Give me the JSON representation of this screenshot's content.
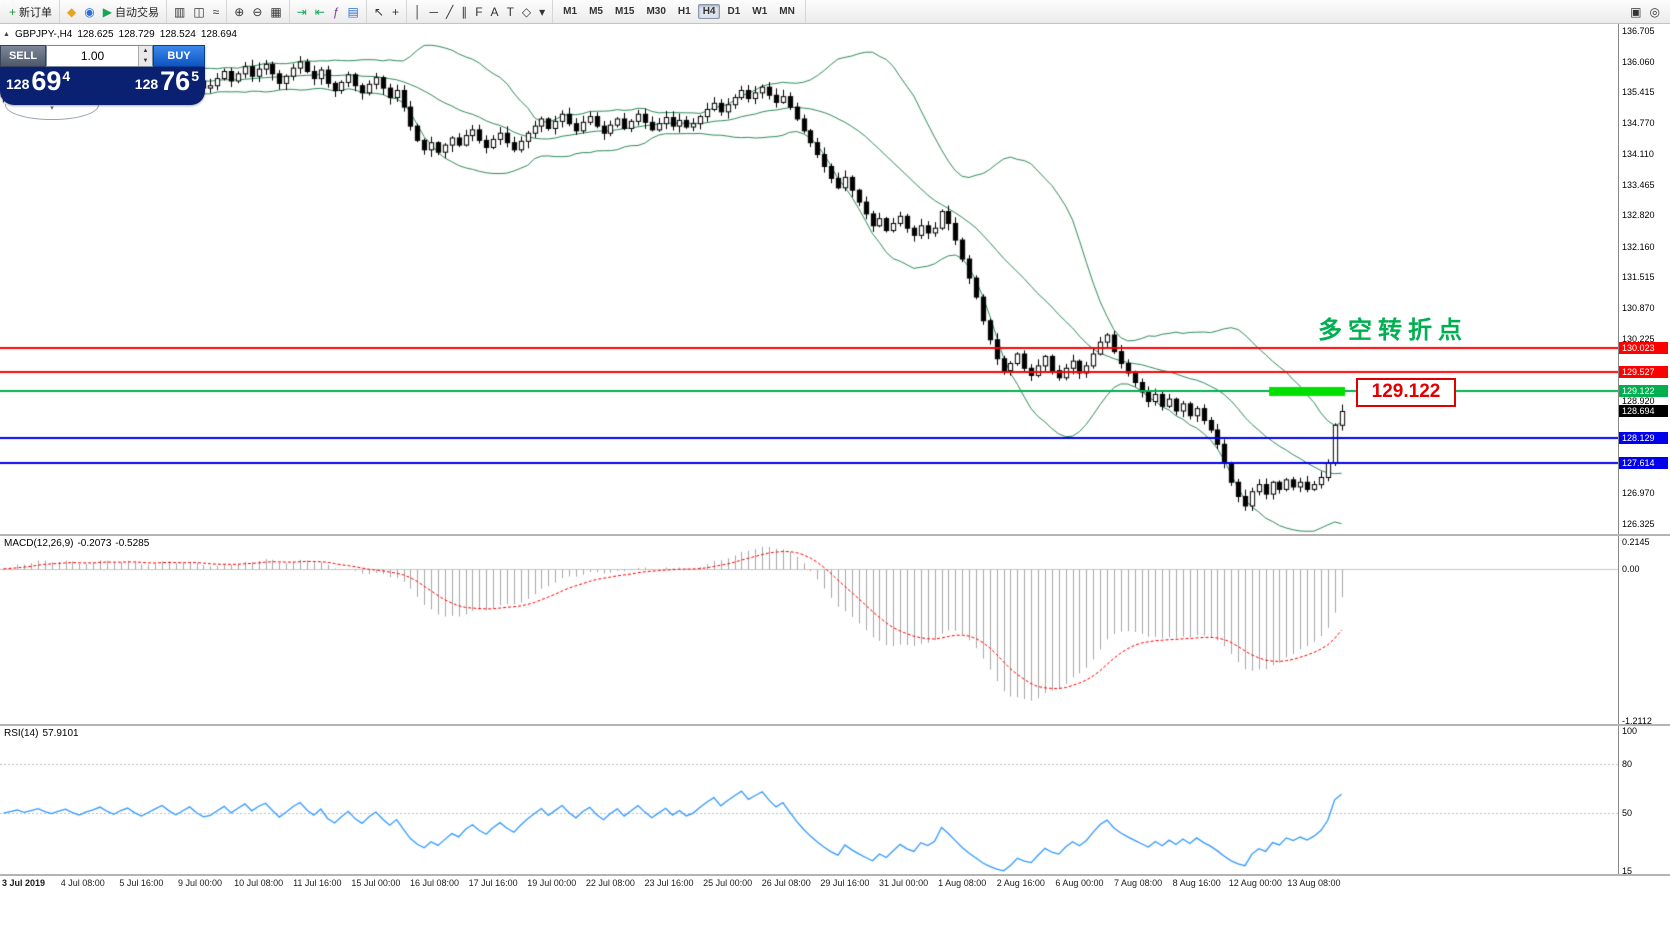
{
  "symbol_info": {
    "title": "GBPJPY-,H4",
    "open": "128.625",
    "high": "128.729",
    "low": "128.524",
    "close": "128.694"
  },
  "order_panel": {
    "sell_label": "SELL",
    "buy_label": "BUY",
    "volume": "1.00",
    "sell": {
      "big": "128",
      "main": "69",
      "sup": "4"
    },
    "buy": {
      "big": "128",
      "main": "76",
      "sup": "5"
    },
    "collapse_glyph": "▾"
  },
  "toolbar": {
    "left_groups": [
      {
        "items": [
          {
            "name": "new-order-button",
            "glyph": "+",
            "color": "#1f9d3a",
            "label": "新订单"
          }
        ]
      },
      {
        "items": [
          {
            "name": "profiles-icon",
            "glyph": "◆",
            "color": "#e8a21c"
          },
          {
            "name": "market-watch-icon",
            "glyph": "◉",
            "color": "#2a6fdb"
          },
          {
            "name": "autotrading-button",
            "glyph": "▶",
            "color": "#18a558",
            "label": "自动交易"
          }
        ]
      },
      {
        "items": [
          {
            "name": "bar-chart-icon",
            "glyph": "▥",
            "color": "#333333"
          },
          {
            "name": "candlestick-chart-icon",
            "glyph": "◫",
            "color": "#333333"
          },
          {
            "name": "line-chart-icon",
            "glyph": "≈",
            "color": "#333333"
          }
        ]
      },
      {
        "items": [
          {
            "name": "zoom-in-icon",
            "glyph": "⊕",
            "color": "#333333"
          },
          {
            "name": "zoom-out-icon",
            "glyph": "⊖",
            "color": "#333333"
          },
          {
            "name": "tile-windows-icon",
            "glyph": "▦",
            "color": "#333333"
          }
        ]
      },
      {
        "items": [
          {
            "name": "auto-scroll-icon",
            "glyph": "⇥",
            "color": "#18a558"
          },
          {
            "name": "chart-shift-icon",
            "glyph": "⇤",
            "color": "#18a558"
          },
          {
            "name": "indicators-icon",
            "glyph": "ƒ",
            "color": "#7a3fa0"
          },
          {
            "name": "templates-icon",
            "glyph": "▤",
            "color": "#2a6fdb"
          }
        ]
      },
      {
        "items": [
          {
            "name": "cursor-icon",
            "glyph": "↖",
            "color": "#333333"
          },
          {
            "name": "crosshair-icon",
            "glyph": "+",
            "color": "#333333"
          }
        ]
      },
      {
        "items": [
          {
            "name": "vertical-line-icon",
            "glyph": "│",
            "color": "#333333"
          },
          {
            "name": "horizontal-line-icon",
            "glyph": "─",
            "color": "#333333"
          },
          {
            "name": "trendline-icon",
            "glyph": "╱",
            "color": "#333333"
          },
          {
            "name": "channel-icon",
            "glyph": "∥",
            "color": "#333333"
          },
          {
            "name": "fibonacci-icon",
            "glyph": "F",
            "color": "#333333"
          },
          {
            "name": "text-icon",
            "glyph": "A",
            "color": "#333333"
          },
          {
            "name": "label-icon",
            "glyph": "T",
            "color": "#333333"
          },
          {
            "name": "shapes-icon",
            "glyph": "◇",
            "color": "#333333"
          },
          {
            "name": "dropdown-icon",
            "glyph": "▾",
            "color": "#333333"
          }
        ]
      }
    ],
    "timeframes": {
      "items": [
        "M1",
        "M5",
        "M15",
        "M30",
        "H1",
        "H4",
        "D1",
        "W1",
        "MN"
      ],
      "active": "H4"
    },
    "right_items": [
      {
        "name": "charts-list-icon",
        "glyph": "▣",
        "color": "#333333"
      },
      {
        "name": "search-icon",
        "glyph": "◎",
        "color": "#333333"
      }
    ]
  },
  "chart_data": {
    "type": "candlestick",
    "symbol": "GBPJPY-",
    "timeframe": "H4",
    "ylim": [
      126.11,
      136.85
    ],
    "closes": [
      135.4,
      135.55,
      135.7,
      135.5,
      135.65,
      135.8,
      135.6,
      135.45,
      135.62,
      135.75,
      135.55,
      135.4,
      135.58,
      135.7,
      135.85,
      135.65,
      135.5,
      135.68,
      135.8,
      135.6,
      135.45,
      135.6,
      135.75,
      135.9,
      135.7,
      135.55,
      135.7,
      135.85,
      135.65,
      135.5,
      135.55,
      135.7,
      135.85,
      135.65,
      135.8,
      135.95,
      135.75,
      135.9,
      136.0,
      135.8,
      135.6,
      135.75,
      135.92,
      136.05,
      135.85,
      135.7,
      135.88,
      135.6,
      135.45,
      135.62,
      135.78,
      135.55,
      135.4,
      135.58,
      135.72,
      135.5,
      135.3,
      135.45,
      135.1,
      134.7,
      134.4,
      134.2,
      134.35,
      134.15,
      134.3,
      134.45,
      134.3,
      134.5,
      134.62,
      134.4,
      134.25,
      134.42,
      134.55,
      134.35,
      134.2,
      134.38,
      134.55,
      134.7,
      134.85,
      134.65,
      134.8,
      134.95,
      134.75,
      134.6,
      134.78,
      134.9,
      134.7,
      134.55,
      134.72,
      134.85,
      134.65,
      134.8,
      134.95,
      134.78,
      134.62,
      134.75,
      134.88,
      134.7,
      134.82,
      134.68,
      134.75,
      134.9,
      135.05,
      135.18,
      135.0,
      135.15,
      135.3,
      135.45,
      135.28,
      135.4,
      135.52,
      135.35,
      135.2,
      135.32,
      135.1,
      134.85,
      134.6,
      134.35,
      134.1,
      133.85,
      133.6,
      133.4,
      133.62,
      133.35,
      133.1,
      132.85,
      132.6,
      132.75,
      132.5,
      132.65,
      132.8,
      132.55,
      132.4,
      132.6,
      132.45,
      132.55,
      132.9,
      132.65,
      132.3,
      131.9,
      131.5,
      131.1,
      130.6,
      130.2,
      129.8,
      129.55,
      129.7,
      129.9,
      129.6,
      129.45,
      129.65,
      129.85,
      129.55,
      129.4,
      129.6,
      129.75,
      129.5,
      129.65,
      129.9,
      130.15,
      130.3,
      129.95,
      129.7,
      129.5,
      129.3,
      129.1,
      128.9,
      129.05,
      128.8,
      128.95,
      128.7,
      128.85,
      128.6,
      128.75,
      128.5,
      128.3,
      128.0,
      127.6,
      127.2,
      126.9,
      126.7,
      127.0,
      127.15,
      126.95,
      127.2,
      127.05,
      127.25,
      127.1,
      127.2,
      127.05,
      127.15,
      127.3,
      127.6,
      128.4,
      128.69
    ],
    "bollinger": {
      "period": 20,
      "deviation": 2,
      "color": "#2e8b57"
    },
    "hlines": [
      {
        "price": 130.023,
        "color": "#ff0000",
        "label": "130.023"
      },
      {
        "price": 129.527,
        "color": "#ff0000",
        "label": "129.527"
      },
      {
        "price": 129.122,
        "color": "#00b050",
        "label": "129.122"
      },
      {
        "price": 128.129,
        "color": "#0000ee",
        "label": "128.129"
      },
      {
        "price": 127.614,
        "color": "#0000ee",
        "label": "127.614"
      }
    ],
    "current_price": {
      "value": 128.694,
      "label": "128.694",
      "color": "#000000"
    },
    "highlight_bar": {
      "price": 129.122,
      "from_candle": 184,
      "to_candle": 195,
      "color": "#00e000"
    },
    "callout": {
      "text": "129.122",
      "color": "#e00000"
    },
    "annotation": {
      "text": "多空转折点",
      "color": "#00b050"
    },
    "price_ticks": [
      "136.705",
      "136.060",
      "135.415",
      "134.770",
      "134.110",
      "133.465",
      "132.820",
      "132.160",
      "131.515",
      "130.870",
      "130.225",
      "128.920",
      "126.970",
      "126.325"
    ],
    "macd": {
      "label": "MACD(12,26,9)",
      "value": "-0.2073",
      "signal_value": "-0.5285",
      "fast": 12,
      "slow": 26,
      "signal": 9,
      "ylim": [
        -1.2345,
        0.2612
      ],
      "ticks": [
        {
          "t": "0.2145",
          "v": 0.2145
        },
        {
          "t": "0.00",
          "v": 0
        },
        {
          "t": "-1.2112",
          "v": -1.2112
        }
      ],
      "hist_color": "#a8a8a8",
      "signal_color": "#ff0000"
    },
    "rsi": {
      "label": "RSI(14)",
      "value": "57.9101",
      "period": 14,
      "ylim": [
        13,
        103
      ],
      "ticks": [
        {
          "t": "100",
          "v": 100
        },
        {
          "t": "80",
          "v": 80
        },
        {
          "t": "50",
          "v": 50
        },
        {
          "t": "15",
          "v": 15
        }
      ],
      "levels": [
        80,
        50
      ],
      "color": "#3399ff"
    },
    "time_labels": [
      "3 Jul 2019",
      "4 Jul 08:00",
      "5 Jul 16:00",
      "9 Jul 00:00",
      "10 Jul 08:00",
      "11 Jul 16:00",
      "15 Jul 00:00",
      "16 Jul 08:00",
      "17 Jul 16:00",
      "19 Jul 00:00",
      "22 Jul 08:00",
      "23 Jul 16:00",
      "25 Jul 00:00",
      "26 Jul 08:00",
      "29 Jul 16:00",
      "31 Jul 00:00",
      "1 Aug 08:00",
      "2 Aug 16:00",
      "6 Aug 00:00",
      "7 Aug 08:00",
      "8 Aug 16:00",
      "12 Aug 00:00",
      "13 Aug 08:00"
    ]
  }
}
